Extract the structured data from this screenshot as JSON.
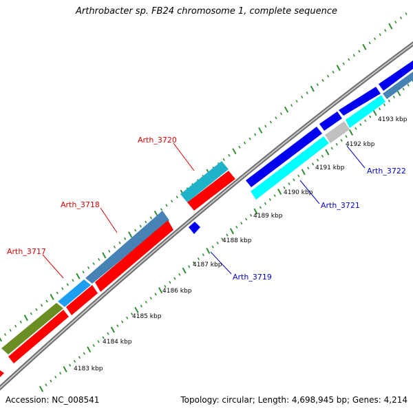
{
  "title": "Arthrobacter sp. FB24 chromosome 1, complete sequence",
  "footer": {
    "accession": "Accession: NC_008541",
    "summary": "Topology: circular; Length: 4,698,945 bp; Genes: 4,214"
  },
  "colors": {
    "backbone": "#808080",
    "tick": "#2e8b2e",
    "label_red": "#e00000",
    "label_blue": "#0000cc"
  },
  "kbp_labels": [
    "4183 kbp",
    "4184 kbp",
    "4185 kbp",
    "4186 kbp",
    "4187 kbp",
    "4188 kbp",
    "4189 kbp",
    "4190 kbp",
    "4191 kbp",
    "4192 kbp",
    "4193 kbp"
  ],
  "gene_labels": [
    {
      "text": "Arth_3717",
      "color": "#e00000"
    },
    {
      "text": "Arth_3718",
      "color": "#e00000"
    },
    {
      "text": "Arth_3720",
      "color": "#e00000"
    },
    {
      "text": "Arth_3719",
      "color": "#0000cc"
    },
    {
      "text": "Arth_3721",
      "color": "#0000cc"
    },
    {
      "text": "Arth_3722",
      "color": "#0000cc"
    }
  ]
}
